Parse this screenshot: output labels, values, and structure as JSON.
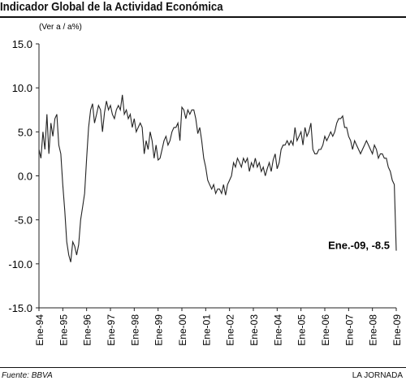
{
  "title": "Indicador Global de la Actividad Económica",
  "source": "Fuente: BBVA",
  "credit": "LA JORNADA",
  "chart_data": {
    "type": "line",
    "ylabel": "(Ver a / a%)",
    "ylim": [
      -15,
      15
    ],
    "yticks": [
      15,
      10,
      5,
      0,
      -5,
      -10,
      -15
    ],
    "ytick_labels": [
      "15.0",
      "10.0",
      "5.0",
      "0.0",
      "-5.0",
      "-10.0",
      "-15.0"
    ],
    "xtick_labels": [
      "Ene-94",
      "Ene-95",
      "Ene-96",
      "Ene-97",
      "Ene-98",
      "Ene-99",
      "Ene-00",
      "Ene-01",
      "Ene-02",
      "Ene-03",
      "Ene-04",
      "Ene-05",
      "Ene-06",
      "Ene-07",
      "Ene-08",
      "Ene-09"
    ],
    "xlim": [
      "1994-01",
      "2009-01"
    ],
    "grid": false,
    "annotation": "Ene.-09, -8.5",
    "series": [
      {
        "x": [
          "1994-01",
          "1994-02",
          "1994-03",
          "1994-04",
          "1994-05",
          "1994-06",
          "1994-07",
          "1994-08",
          "1994-09",
          "1994-10",
          "1994-11",
          "1994-12",
          "1995-01",
          "1995-02",
          "1995-03",
          "1995-04",
          "1995-05",
          "1995-06",
          "1995-07",
          "1995-08",
          "1995-09",
          "1995-10",
          "1995-11",
          "1995-12",
          "1996-01",
          "1996-02",
          "1996-03",
          "1996-04",
          "1996-05",
          "1996-06",
          "1996-07",
          "1996-08",
          "1996-09",
          "1996-10",
          "1996-11",
          "1996-12",
          "1997-01",
          "1997-02",
          "1997-03",
          "1997-04",
          "1997-05",
          "1997-06",
          "1997-07",
          "1997-08",
          "1997-09",
          "1997-10",
          "1997-11",
          "1997-12",
          "1998-01",
          "1998-02",
          "1998-03",
          "1998-04",
          "1998-05",
          "1998-06",
          "1998-07",
          "1998-08",
          "1998-09",
          "1998-10",
          "1998-11",
          "1998-12",
          "1999-01",
          "1999-02",
          "1999-03",
          "1999-04",
          "1999-05",
          "1999-06",
          "1999-07",
          "1999-08",
          "1999-09",
          "1999-10",
          "1999-11",
          "1999-12",
          "2000-01",
          "2000-02",
          "2000-03",
          "2000-04",
          "2000-05",
          "2000-06",
          "2000-07",
          "2000-08",
          "2000-09",
          "2000-10",
          "2000-11",
          "2000-12",
          "2001-01",
          "2001-02",
          "2001-03",
          "2001-04",
          "2001-05",
          "2001-06",
          "2001-07",
          "2001-08",
          "2001-09",
          "2001-10",
          "2001-11",
          "2001-12",
          "2002-01",
          "2002-02",
          "2002-03",
          "2002-04",
          "2002-05",
          "2002-06",
          "2002-07",
          "2002-08",
          "2002-09",
          "2002-10",
          "2002-11",
          "2002-12",
          "2003-01",
          "2003-02",
          "2003-03",
          "2003-04",
          "2003-05",
          "2003-06",
          "2003-07",
          "2003-08",
          "2003-09",
          "2003-10",
          "2003-11",
          "2003-12",
          "2004-01",
          "2004-02",
          "2004-03",
          "2004-04",
          "2004-05",
          "2004-06",
          "2004-07",
          "2004-08",
          "2004-09",
          "2004-10",
          "2004-11",
          "2004-12",
          "2005-01",
          "2005-02",
          "2005-03",
          "2005-04",
          "2005-05",
          "2005-06",
          "2005-07",
          "2005-08",
          "2005-09",
          "2005-10",
          "2005-11",
          "2005-12",
          "2006-01",
          "2006-02",
          "2006-03",
          "2006-04",
          "2006-05",
          "2006-06",
          "2006-07",
          "2006-08",
          "2006-09",
          "2006-10",
          "2006-11",
          "2006-12",
          "2007-01",
          "2007-02",
          "2007-03",
          "2007-04",
          "2007-05",
          "2007-06",
          "2007-07",
          "2007-08",
          "2007-09",
          "2007-10",
          "2007-11",
          "2007-12",
          "2008-01",
          "2008-02",
          "2008-03",
          "2008-04",
          "2008-05",
          "2008-06",
          "2008-07",
          "2008-08",
          "2008-09",
          "2008-10",
          "2008-11",
          "2008-12",
          "2009-01"
        ],
        "values": [
          3.0,
          2.0,
          5.0,
          3.0,
          7.0,
          2.5,
          6.0,
          4.5,
          6.5,
          7.0,
          3.5,
          2.5,
          -1.0,
          -4.0,
          -7.5,
          -9.0,
          -9.8,
          -7.5,
          -8.0,
          -9.0,
          -7.8,
          -5.0,
          -3.5,
          -2.0,
          2.0,
          5.5,
          7.5,
          8.2,
          6.0,
          7.0,
          8.0,
          7.5,
          5.0,
          7.2,
          8.5,
          7.5,
          8.0,
          7.0,
          6.5,
          7.5,
          8.0,
          7.5,
          9.2,
          7.0,
          7.5,
          6.5,
          7.0,
          5.5,
          6.5,
          5.0,
          5.5,
          6.0,
          5.5,
          2.5,
          4.0,
          3.0,
          5.0,
          4.0,
          2.0,
          3.5,
          1.8,
          2.0,
          3.0,
          4.0,
          4.5,
          3.5,
          4.0,
          5.0,
          5.5,
          5.5,
          6.0,
          4.0,
          7.8,
          7.5,
          6.5,
          7.5,
          7.0,
          7.5,
          7.5,
          6.5,
          4.8,
          5.5,
          4.0,
          2.0,
          1.0,
          -0.5,
          -1.0,
          -1.5,
          -1.0,
          -2.0,
          -1.5,
          -1.5,
          -2.0,
          -1.0,
          -2.2,
          -1.0,
          -0.5,
          0.0,
          1.5,
          1.0,
          2.0,
          1.5,
          1.0,
          2.0,
          1.5,
          2.0,
          0.5,
          1.5,
          1.0,
          2.0,
          1.0,
          1.5,
          0.5,
          1.0,
          0.0,
          0.8,
          1.5,
          0.5,
          1.8,
          2.5,
          0.8,
          1.5,
          3.0,
          3.5,
          3.5,
          4.0,
          3.5,
          4.0,
          3.5,
          5.5,
          4.0,
          4.5,
          5.0,
          3.5,
          5.5,
          4.5,
          5.0,
          6.0,
          3.0,
          2.5,
          2.5,
          3.0,
          3.0,
          3.5,
          4.5,
          4.0,
          4.5,
          5.0,
          4.5,
          5.0,
          6.0,
          6.5,
          6.5,
          6.8,
          5.5,
          5.5,
          4.5,
          4.0,
          3.0,
          4.0,
          3.5,
          3.0,
          2.5,
          3.0,
          3.5,
          4.0,
          3.5,
          3.0,
          2.5,
          3.5,
          3.0,
          2.0,
          2.5,
          2.5,
          2.0,
          2.0,
          1.0,
          0.5,
          -0.5,
          -1.0,
          -8.5
        ]
      }
    ]
  }
}
